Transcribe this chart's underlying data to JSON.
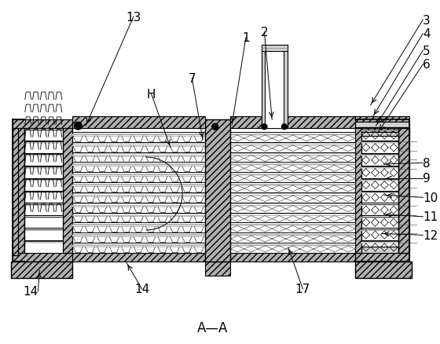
{
  "title": "A—A",
  "bg_color": "#ffffff",
  "annotations": [
    [
      "1",
      318,
      45,
      300,
      158
    ],
    [
      "2",
      342,
      38,
      352,
      152
    ],
    [
      "3",
      548,
      22,
      480,
      133
    ],
    [
      "4",
      548,
      40,
      483,
      148
    ],
    [
      "5",
      548,
      62,
      487,
      160
    ],
    [
      "6",
      548,
      80,
      490,
      168
    ],
    [
      "7",
      248,
      98,
      262,
      178
    ],
    [
      "8",
      548,
      208,
      497,
      210
    ],
    [
      "9",
      548,
      228,
      498,
      228
    ],
    [
      "10",
      548,
      253,
      498,
      250
    ],
    [
      "11",
      548,
      278,
      497,
      275
    ],
    [
      "12",
      548,
      302,
      494,
      300
    ],
    [
      "13",
      172,
      18,
      110,
      160
    ],
    [
      "14",
      48,
      375,
      50,
      348
    ],
    [
      "14",
      183,
      372,
      163,
      338
    ],
    [
      "17",
      392,
      372,
      373,
      318
    ],
    [
      "H",
      195,
      118,
      220,
      188
    ]
  ]
}
